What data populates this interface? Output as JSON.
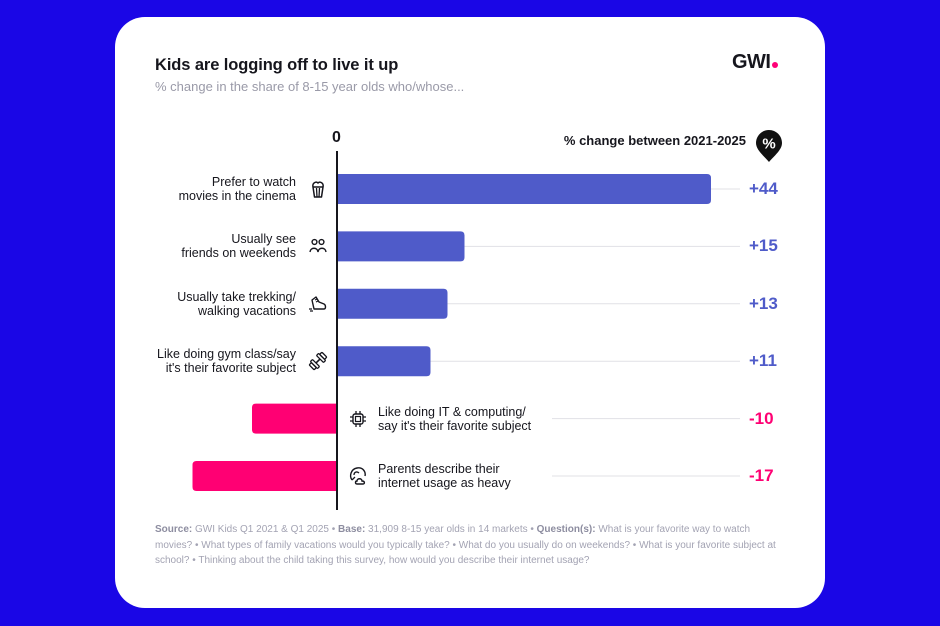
{
  "header": {
    "title": "Kids are logging off to live it up",
    "subtitle": "% change in the share of 8-15 year olds who/whose...",
    "logo_text": "GWI"
  },
  "legend": {
    "label": "% change between 2021-2025",
    "icon": "percent-pin-icon",
    "icon_text": "%"
  },
  "colors": {
    "positive": "#4f5bc9",
    "negative": "#ff0073",
    "background": "#1a06e6",
    "text": "#16161d",
    "gridline": "#e1e1e6"
  },
  "chart_data": {
    "type": "bar",
    "orientation": "horizontal",
    "title": "Kids are logging off to live it up",
    "subtitle": "% change in the share of 8-15 year olds who/whose...",
    "xlabel": "% change between 2021-2025",
    "ylabel": "",
    "zero_label": "0",
    "xlim": [
      -20,
      45
    ],
    "grid": false,
    "categories": [
      {
        "lines": [
          "Prefer to watch",
          "movies in the cinema"
        ],
        "icon": "popcorn-icon",
        "value": 44,
        "label": "+44"
      },
      {
        "lines": [
          "Usually see",
          "friends on weekends"
        ],
        "icon": "friends-icon",
        "value": 15,
        "label": "+15"
      },
      {
        "lines": [
          "Usually take trekking/",
          "walking vacations"
        ],
        "icon": "sneaker-icon",
        "value": 13,
        "label": "+13"
      },
      {
        "lines": [
          "Like doing gym class/say",
          "it's their favorite subject"
        ],
        "icon": "dumbbell-icon",
        "value": 11,
        "label": "+11"
      },
      {
        "lines": [
          "Like doing IT & computing/",
          "say it's their favorite subject"
        ],
        "icon": "chip-icon",
        "value": -10,
        "label": "-10"
      },
      {
        "lines": [
          "Parents describe their",
          "internet usage as heavy"
        ],
        "icon": "internet-usage-icon",
        "value": -17,
        "label": "-17"
      }
    ]
  },
  "footer": {
    "source_label": "Source:",
    "source_text": " GWI Kids Q1 2021 & Q1 2025 • ",
    "base_label": "Base:",
    "base_text": " 31,909 8-15 year olds in 14 markets • ",
    "questions_label": "Question(s):",
    "questions_text": " What is your favorite way to watch movies? • What types of family vacations would you typically take? • What do you usually do on weekends? • What is your favorite subject at school? • Thinking about the child taking this survey, how would you describe their internet usage?"
  }
}
